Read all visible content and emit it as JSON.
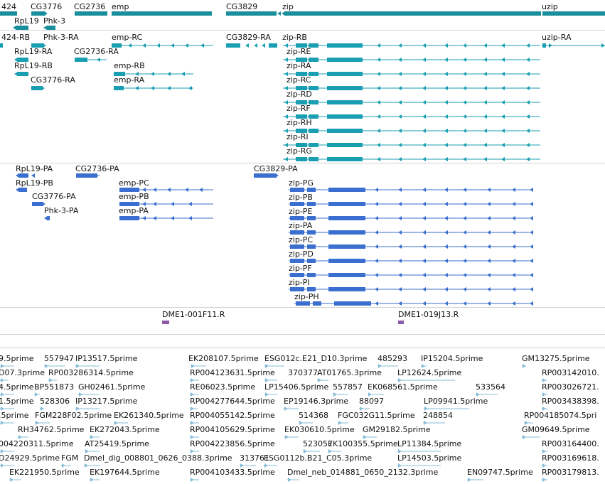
{
  "colors": {
    "gene": "#1a8f9c",
    "mrna": "#1a9fb2",
    "protein": "#3a6fcf",
    "clone": "#8a5aa8",
    "est": "#86bdd9",
    "separator": "#d2d2d2"
  },
  "gene_track": {
    "labels": [
      "424",
      "CG3776",
      "CG2736",
      "emp",
      "CG3829",
      "zip",
      "uzip",
      "RpL19",
      "Phk-3"
    ]
  },
  "mrna_track": {
    "labels": [
      "424-RB",
      "Phk-3-RA",
      "emp-RC",
      "CG3829-RA",
      "zip-RB",
      "uzip-RA",
      "RpL19-RA",
      "CG2736-RA",
      "zip-RE",
      "RpL19-RB",
      "emp-RB",
      "zip-RA",
      "CG3776-RA",
      "emp-RA",
      "zip-RC",
      "zip-RD",
      "zip-RF",
      "zip-RH",
      "zip-RI",
      "zip-RG"
    ]
  },
  "protein_track": {
    "labels": [
      "RpL19-PA",
      "CG2736-PA",
      "CG3829-PA",
      "RpL19-PB",
      "emp-PC",
      "zip-PG",
      "CG3776-PA",
      "emp-PB",
      "zip-PB",
      "Phk-3-PA",
      "emp-PA",
      "zip-PE",
      "zip-PA",
      "zip-PC",
      "zip-PD",
      "zip-PF",
      "zip-PI",
      "zip-PH"
    ]
  },
  "clone_track": {
    "labels": [
      "DME1-001F11.R",
      "DME1-019J13.R"
    ]
  },
  "est_track": {
    "rows": [
      [
        "9.5prime",
        "557947",
        "IP13517.5prime",
        "EK208107.5prime",
        "ESG012c.E21_D10.3prime",
        "485293",
        "IP15204.5prime",
        "GM13275.5prime"
      ],
      [
        "D07.3prime",
        "RP003286314.5prime",
        "RP004123631.5prime",
        "370377",
        "AT01765.3prime",
        "LP12624.5prime",
        "RP003142010."
      ],
      [
        "4.5prime",
        "BP551873",
        "GH02461.5prime",
        "RE06023.5prime",
        "LP15406.5prime",
        "557857",
        "EK068561.5prime",
        "533564",
        "RP003026721."
      ],
      [
        "1.5prime",
        "528306",
        "IP13217.5prime",
        "RP004277644.5prime",
        "EP19146.3prime",
        "88097",
        "LP09941.5prime",
        "RP003438398."
      ],
      [
        ".5prime",
        "FGM228F02.5prime",
        "EK261340.5prime",
        "RP004055142.5prime",
        "514368",
        "FGC032G11.5prime",
        "248854",
        "RP004185074.5pri"
      ],
      [
        "RH34762.5prime",
        "EK272043.5prime",
        "RP004105629.5prime",
        "EK030610.5prime",
        "GM29182.5prime",
        "GM09649.5prime"
      ],
      [
        "004220311.5prime",
        "AT25419.5prime",
        "RP004223856.5prime",
        "523057",
        "EK100355.5prime",
        "LP11384.5prime",
        "RP003164400."
      ],
      [
        "D24929.5prime",
        "FGM",
        "Dmel_dig_008801_0626_0388.3prime",
        "313761",
        "ESG0112b.B21_C05.3prime",
        "LP14503.5prime",
        "RP003169618."
      ],
      [
        "EK221950.5prime",
        "EK197644.5prime",
        "RP004103433.5prime",
        "Dmel_neb_014881_0650_2132.3prime",
        "EN09747.5prime",
        "RP003179813."
      ]
    ]
  }
}
